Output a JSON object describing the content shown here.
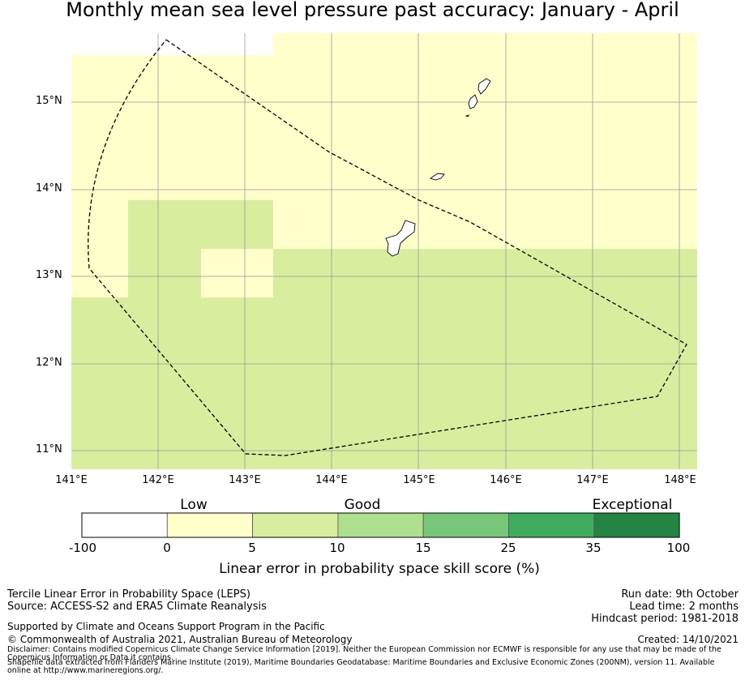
{
  "title": "Monthly mean sea level pressure past accuracy: January - April",
  "map": {
    "lat_labels": [
      "15°N",
      "14°N",
      "13°N",
      "12°N",
      "11°N"
    ],
    "lon_labels": [
      "141°E",
      "142°E",
      "143°E",
      "144°E",
      "145°E",
      "146°E",
      "147°E",
      "148°E"
    ],
    "cell_colors": {
      "light_yellow": "#ffffcc",
      "light_green": "#d9ed9f",
      "white": "#ffffff"
    },
    "boundary_style": "dashed",
    "features": [
      "Guam",
      "Rota",
      "Tinian",
      "Saipan",
      "EEZ boundary"
    ]
  },
  "colorbar": {
    "category_labels": [
      "Low",
      "Good",
      "Exceptional"
    ],
    "ticks": [
      "-100",
      "0",
      "5",
      "10",
      "15",
      "25",
      "35",
      "100"
    ],
    "colors": [
      "#ffffff",
      "#ffffcc",
      "#d9ed9f",
      "#addf8e",
      "#78c679",
      "#41ab5d",
      "#238443"
    ],
    "label": "Linear error in probability space skill score (%)"
  },
  "info": {
    "method": "Tercile Linear Error in Probability Space (LEPS)",
    "source": "Source: ACCESS-S2 and ERA5 Climate Reanalysis",
    "support": "Supported by Climate and Oceans Support Program in the Pacific",
    "copyright": "© Commonwealth of Australia 2021, Australian Bureau of Meteorology",
    "disclaimer": "Disclaimer: Contains modified Copernicus Climate Change Service Information [2019]. Neither the European Commission nor ECMWF is responsible for any use that may be made of the Copernicus Information or Data it contains.",
    "shapefile": "Shapefile data extracted from Flanders Marine Institute (2019), Maritime Boundaries Geodatabase: Maritime Boundaries and Exclusive Economic Zones (200NM), version 11. Available online at http://www.marineregions.org/.",
    "run_date": "Run date: 9th October",
    "lead_time": "Lead time: 2 months",
    "hindcast": "Hindcast period: 1981-2018",
    "created": "Created: 14/10/2021"
  }
}
